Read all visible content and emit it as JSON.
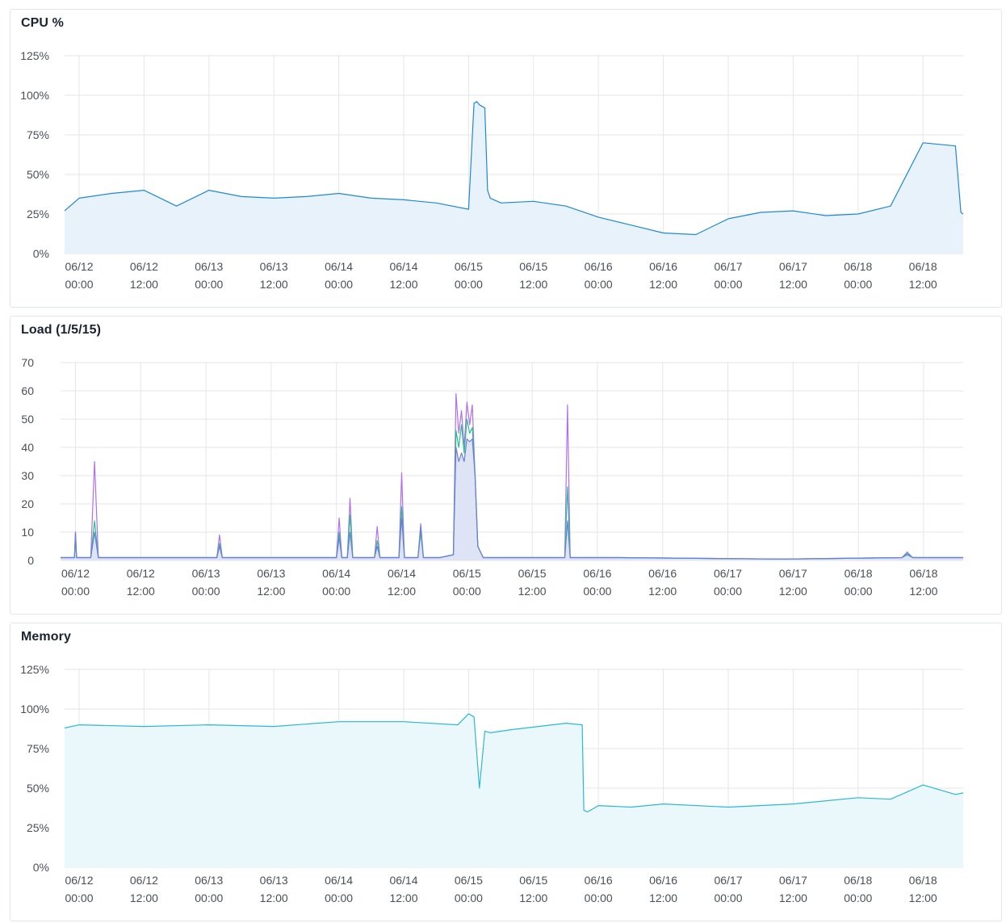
{
  "colors": {
    "cpu": "#1f88d6",
    "cpu_fill": "#e8f2fb",
    "load1": "#b06ff0",
    "load5": "#2bbf8e",
    "load15": "#6a7fd6",
    "load_fill": "#dfe3f6",
    "memory": "#2ab8d8",
    "memory_fill": "#eaf7fb",
    "grid": "#e6e6e6",
    "title": "#1b2230"
  },
  "chart_data": [
    {
      "type": "area",
      "title": "CPU %",
      "ylim": [
        0,
        125
      ],
      "yticks": [
        "0%",
        "25%",
        "50%",
        "75%",
        "100%",
        "125%"
      ],
      "xticks": [
        {
          "date": "06/12",
          "time": "00:00"
        },
        {
          "date": "06/12",
          "time": "12:00"
        },
        {
          "date": "06/13",
          "time": "00:00"
        },
        {
          "date": "06/13",
          "time": "12:00"
        },
        {
          "date": "06/14",
          "time": "00:00"
        },
        {
          "date": "06/14",
          "time": "12:00"
        },
        {
          "date": "06/15",
          "time": "00:00"
        },
        {
          "date": "06/15",
          "time": "12:00"
        },
        {
          "date": "06/16",
          "time": "00:00"
        },
        {
          "date": "06/16",
          "time": "12:00"
        },
        {
          "date": "06/17",
          "time": "00:00"
        },
        {
          "date": "06/17",
          "time": "12:00"
        },
        {
          "date": "06/18",
          "time": "00:00"
        },
        {
          "date": "06/18",
          "time": "12:00"
        }
      ],
      "grid": true,
      "x_hours": [
        -4.5,
        0,
        6,
        12,
        18,
        24,
        30,
        36,
        42,
        48,
        54,
        60,
        66,
        72,
        73,
        73.5,
        74,
        75,
        75.5,
        76,
        78,
        84,
        90,
        96,
        102,
        108,
        114,
        120,
        126,
        132,
        138,
        144,
        150,
        156,
        162,
        163,
        168
      ],
      "series": [
        {
          "values": [
            27,
            35,
            38,
            40,
            30,
            40,
            36,
            35,
            36,
            38,
            35,
            34,
            32,
            28,
            95,
            96,
            94,
            92,
            40,
            35,
            32,
            33,
            30,
            23,
            18,
            13,
            12,
            22,
            26,
            27,
            24,
            25,
            30,
            70,
            68,
            26,
            25
          ]
        }
      ]
    },
    {
      "type": "line",
      "title": "Load (1/5/15)",
      "ylim": [
        0,
        70
      ],
      "yticks": [
        "0",
        "10",
        "20",
        "30",
        "40",
        "50",
        "60",
        "70"
      ],
      "xticks": [
        {
          "date": "06/12",
          "time": "00:00"
        },
        {
          "date": "06/12",
          "time": "12:00"
        },
        {
          "date": "06/13",
          "time": "00:00"
        },
        {
          "date": "06/13",
          "time": "12:00"
        },
        {
          "date": "06/14",
          "time": "00:00"
        },
        {
          "date": "06/14",
          "time": "12:00"
        },
        {
          "date": "06/15",
          "time": "00:00"
        },
        {
          "date": "06/15",
          "time": "12:00"
        },
        {
          "date": "06/16",
          "time": "00:00"
        },
        {
          "date": "06/16",
          "time": "12:00"
        },
        {
          "date": "06/17",
          "time": "00:00"
        },
        {
          "date": "06/17",
          "time": "12:00"
        },
        {
          "date": "06/18",
          "time": "00:00"
        },
        {
          "date": "06/18",
          "time": "12:00"
        }
      ],
      "grid": true,
      "x_hours": [
        -4.5,
        -0.2,
        0,
        0.2,
        2.8,
        3.5,
        4.2,
        10,
        22,
        26,
        26.5,
        27,
        48,
        48.5,
        49,
        50,
        50.5,
        51,
        55,
        55.5,
        56,
        59.5,
        60,
        60.5,
        63,
        63.5,
        64,
        66,
        66.5,
        67,
        69.5,
        70,
        70.5,
        71,
        71.5,
        72,
        72.5,
        73,
        73.5,
        74,
        75,
        75.5,
        76,
        90,
        90.5,
        91,
        100,
        130,
        152,
        153,
        154,
        168
      ],
      "series": [
        {
          "name": "1",
          "values": [
            1,
            1,
            10,
            1,
            1,
            35,
            1,
            1,
            1,
            1,
            9,
            1,
            1,
            15,
            1,
            1,
            22,
            1,
            1,
            12,
            1,
            1,
            31,
            1,
            1,
            13,
            1,
            1,
            1,
            1,
            2,
            59,
            45,
            53,
            40,
            56,
            48,
            55,
            30,
            5,
            1,
            1,
            1,
            1,
            55,
            1,
            1,
            0.5,
            1,
            3,
            1,
            1
          ]
        },
        {
          "name": "5",
          "values": [
            1,
            1,
            8,
            1,
            1,
            14,
            1,
            1,
            1,
            1,
            6,
            1,
            1,
            10,
            1,
            1,
            16,
            1,
            1,
            7,
            1,
            1,
            19,
            1,
            1,
            10,
            1,
            1,
            1,
            1,
            2,
            46,
            40,
            48,
            38,
            50,
            45,
            47,
            30,
            5,
            1,
            1,
            1,
            1,
            26,
            1,
            1,
            0.5,
            1,
            2.5,
            1,
            1
          ]
        },
        {
          "name": "15",
          "values": [
            1,
            1,
            10,
            1,
            1,
            10,
            1,
            1,
            1,
            1,
            5,
            1,
            1,
            8,
            1,
            1,
            10,
            1,
            1,
            5,
            1,
            1,
            15,
            1,
            1,
            12,
            1,
            1,
            1,
            1,
            2,
            40,
            35,
            38,
            35,
            43,
            42,
            43,
            30,
            5,
            1,
            1,
            1,
            1,
            14,
            1,
            1,
            0.5,
            1,
            2,
            1,
            1
          ]
        }
      ]
    },
    {
      "type": "area",
      "title": "Memory",
      "ylim": [
        0,
        125
      ],
      "yticks": [
        "0%",
        "25%",
        "50%",
        "75%",
        "100%",
        "125%"
      ],
      "xticks": [
        {
          "date": "06/12",
          "time": "00:00"
        },
        {
          "date": "06/12",
          "time": "12:00"
        },
        {
          "date": "06/13",
          "time": "00:00"
        },
        {
          "date": "06/13",
          "time": "12:00"
        },
        {
          "date": "06/14",
          "time": "00:00"
        },
        {
          "date": "06/14",
          "time": "12:00"
        },
        {
          "date": "06/15",
          "time": "00:00"
        },
        {
          "date": "06/15",
          "time": "12:00"
        },
        {
          "date": "06/16",
          "time": "00:00"
        },
        {
          "date": "06/16",
          "time": "12:00"
        },
        {
          "date": "06/17",
          "time": "00:00"
        },
        {
          "date": "06/17",
          "time": "12:00"
        },
        {
          "date": "06/18",
          "time": "00:00"
        },
        {
          "date": "06/18",
          "time": "12:00"
        }
      ],
      "grid": true,
      "x_hours": [
        -4.5,
        0,
        12,
        24,
        36,
        48,
        60,
        70,
        72,
        73,
        74,
        75,
        76,
        80,
        90,
        93,
        93.3,
        94,
        96,
        102,
        108,
        120,
        132,
        144,
        150,
        156,
        162,
        168
      ],
      "series": [
        {
          "values": [
            88,
            90,
            89,
            90,
            89,
            92,
            92,
            90,
            97,
            95,
            50,
            86,
            85,
            87,
            91,
            90,
            36,
            35,
            39,
            38,
            40,
            38,
            40,
            44,
            43,
            52,
            46,
            47
          ]
        }
      ]
    }
  ]
}
